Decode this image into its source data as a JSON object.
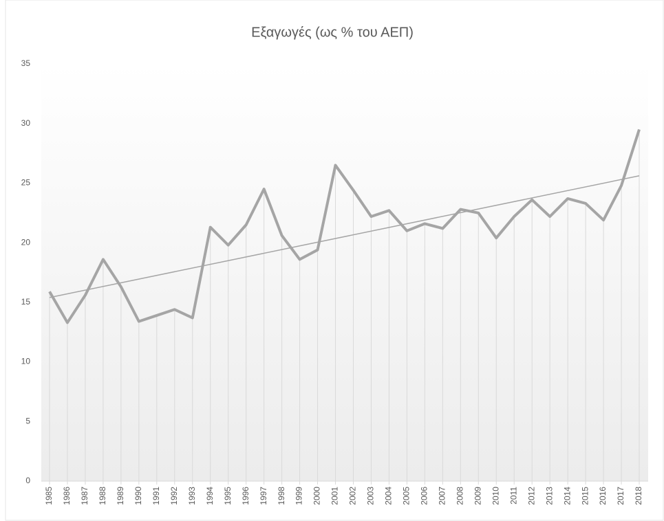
{
  "chart_data": {
    "type": "line",
    "title": "Εξαγωγές (ως % του ΑΕΠ)",
    "categories": [
      "1985",
      "1986",
      "1987",
      "1988",
      "1989",
      "1990",
      "1991",
      "1992",
      "1993",
      "1994",
      "1995",
      "1996",
      "1997",
      "1998",
      "1999",
      "2000",
      "2001",
      "2002",
      "2003",
      "2004",
      "2005",
      "2006",
      "2007",
      "2008",
      "2009",
      "2010",
      "2011",
      "2012",
      "2013",
      "2014",
      "2015",
      "2016",
      "2017",
      "2018"
    ],
    "values": [
      15.9,
      13.3,
      15.6,
      18.6,
      16.3,
      13.4,
      13.9,
      14.4,
      13.7,
      21.3,
      19.8,
      21.5,
      24.5,
      20.6,
      18.6,
      19.4,
      26.5,
      24.4,
      22.2,
      22.7,
      21.0,
      21.6,
      21.2,
      22.8,
      22.5,
      20.4,
      22.2,
      23.6,
      22.2,
      23.7,
      23.3,
      21.9,
      24.8,
      29.5
    ],
    "color": "#a5a5a5",
    "trendline": true,
    "drop_lines": true,
    "ylim": [
      0,
      35
    ],
    "yticks": [
      0,
      5,
      10,
      15,
      20,
      25,
      30,
      35
    ]
  }
}
